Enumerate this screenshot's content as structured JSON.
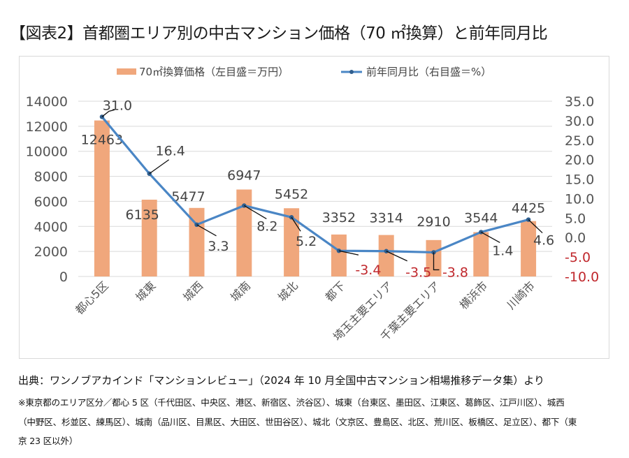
{
  "title": "【図表2】首都圏エリア別の中古マンション価格（70 ㎡換算）と前年同月比",
  "chart_data": {
    "type": "bar+line",
    "title": "【図表2】首都圏エリア別の中古マンション価格（70 ㎡換算）と前年同月比",
    "categories": [
      "都心5区",
      "城東",
      "城西",
      "城南",
      "城北",
      "都下",
      "埼玉主要エリア",
      "千葉主要エリア",
      "横浜市",
      "川崎市"
    ],
    "series": [
      {
        "name": "70㎡換算価格（左目盛＝万円）",
        "type": "bar",
        "axis": "left",
        "color": "#f0a77c",
        "values": [
          12463,
          6135,
          5477,
          6947,
          5452,
          3352,
          3314,
          2910,
          3544,
          4425
        ]
      },
      {
        "name": "前年同月比（右目盛＝%）",
        "type": "line",
        "axis": "right",
        "color": "#4a86c5",
        "values": [
          31.0,
          16.4,
          3.3,
          8.2,
          5.2,
          -3.4,
          -3.5,
          -3.8,
          1.4,
          4.6
        ]
      }
    ],
    "left_axis": {
      "min": 0,
      "max": 14000,
      "step": 2000,
      "ticks": [
        "0",
        "2000",
        "4000",
        "6000",
        "8000",
        "10000",
        "12000",
        "14000"
      ]
    },
    "right_axis": {
      "min": -10,
      "max": 35,
      "step": 5,
      "ticks": [
        "-10.0",
        "-5.0",
        "0.0",
        "5.0",
        "10.0",
        "15.0",
        "20.0",
        "25.0",
        "30.0",
        "35.0"
      ],
      "negative_color": "#c0282d"
    },
    "line_labels": [
      "31.0",
      "16.4",
      "3.3",
      "8.2",
      "5.2",
      "-3.4",
      "-3.5",
      "-3.8",
      "1.4",
      "4.6"
    ],
    "bar_labels": [
      "12463",
      "6135",
      "5477",
      "6947",
      "5452",
      "3352",
      "3314",
      "2910",
      "3544",
      "4425"
    ],
    "legend_position": "top",
    "grid": true,
    "xlabel": "",
    "ylabel": ""
  },
  "footer": {
    "source": "出典：ワンノブアカインド「マンションレビュー」（2024 年 10 月全国中古マンション相場推移データ集）より",
    "note_line1": "※東京都のエリア区分／都心 5 区（千代田区、中央区、港区、新宿区、渋谷区）、城東（台東区、墨田区、江東区、葛飾区、江戸川区）、城西",
    "note_line2": "（中野区、杉並区、練馬区）、城南（品川区、目黒区、大田区、世田谷区）、城北（文京区、豊島区、北区、荒川区、板橋区、足立区）、都下（東",
    "note_line3": "京 23 区以外）"
  }
}
